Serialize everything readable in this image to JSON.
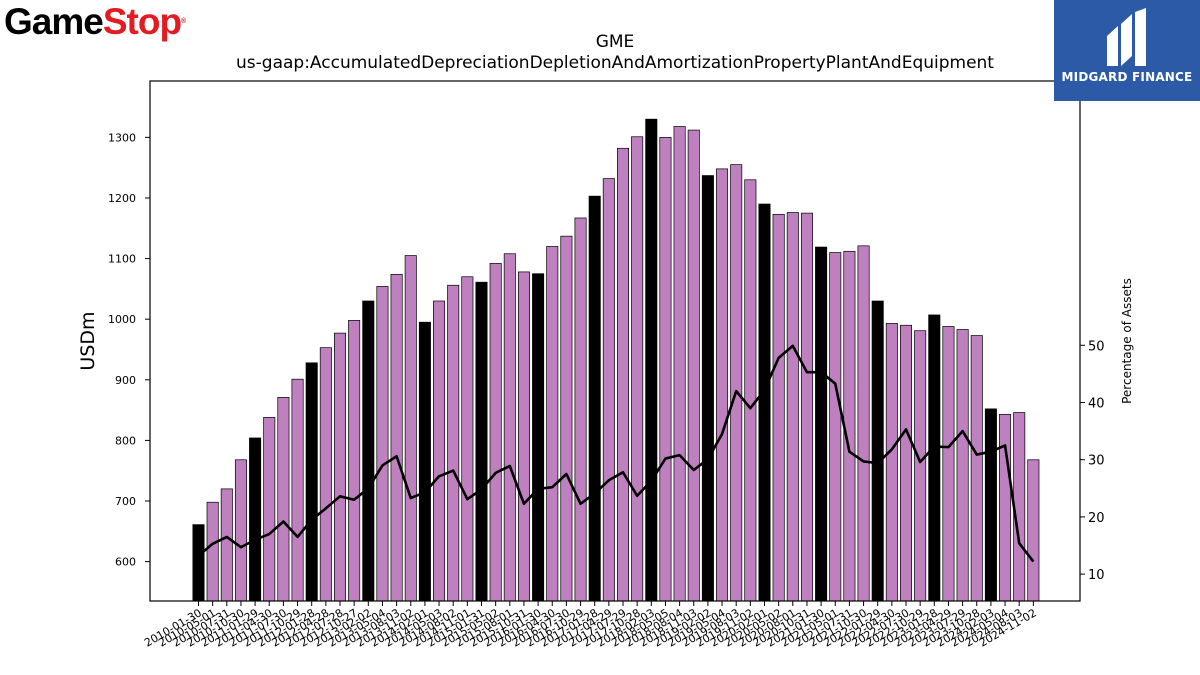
{
  "brand": {
    "logo_game": "Game",
    "logo_stop": "Stop",
    "logo_reg": "®",
    "watermark_text": "MIDGARD FINANCE",
    "watermark_icon": "midgard-m-icon",
    "watermark_color": "#2c5aa6"
  },
  "chart_data": {
    "type": "bar",
    "title": "GME",
    "subtitle": "us-gaap:AccumulatedDepreciationDepletionAndAmortizationPropertyPlantAndEquipment",
    "ylabel": "USDm",
    "y2label": "Percentage of Assets",
    "ylim": [
      535,
      1393
    ],
    "y2lim": [
      5.3,
      96.2
    ],
    "yticks": [
      600,
      700,
      800,
      900,
      1000,
      1100,
      1200,
      1300
    ],
    "y2ticks": [
      10,
      20,
      30,
      40,
      50
    ],
    "grid": false,
    "colors": {
      "quarter_bar": "#bf80bf",
      "fiscal_year_bar": "#000000",
      "line": "#000000"
    },
    "categories": [
      "2010-01-30",
      "2010-05-01",
      "2010-07-31",
      "2010-10-30",
      "2011-01-29",
      "2011-04-30",
      "2011-07-30",
      "2011-10-29",
      "2012-01-28",
      "2012-04-28",
      "2012-07-28",
      "2012-10-27",
      "2013-02-02",
      "2013-05-04",
      "2013-08-03",
      "2013-11-02",
      "2014-02-01",
      "2014-05-03",
      "2014-08-02",
      "2014-11-01",
      "2015-01-31",
      "2015-05-02",
      "2015-08-01",
      "2015-10-31",
      "2016-01-30",
      "2016-04-30",
      "2016-07-30",
      "2016-10-29",
      "2017-01-28",
      "2017-04-29",
      "2017-07-29",
      "2017-10-28",
      "2018-02-03",
      "2018-05-05",
      "2018-08-04",
      "2018-11-03",
      "2019-02-02",
      "2019-05-04",
      "2019-08-03",
      "2019-11-02",
      "2020-02-01",
      "2020-05-02",
      "2020-08-01",
      "2020-10-31",
      "2021-01-30",
      "2021-05-01",
      "2021-07-31",
      "2021-10-30",
      "2022-01-29",
      "2022-04-30",
      "2022-07-30",
      "2022-10-29",
      "2023-01-28",
      "2023-04-29",
      "2023-07-29",
      "2023-10-28",
      "2024-02-03",
      "2024-05-04",
      "2024-08-03",
      "2024-11-02"
    ],
    "values": [
      661,
      698,
      720,
      768,
      804,
      838,
      871,
      901,
      928,
      953,
      977,
      998,
      1030,
      1054,
      1074,
      1105,
      995,
      1030,
      1056,
      1070,
      1061,
      1092,
      1108,
      1078,
      1075,
      1120,
      1137,
      1167,
      1203,
      1232,
      1282,
      1301,
      1330,
      1300,
      1318,
      1312,
      1237,
      1248,
      1255,
      1230,
      1190,
      1173,
      1176,
      1175,
      1119,
      1110,
      1112,
      1121,
      1030,
      993,
      990,
      981,
      1007,
      988,
      983,
      973,
      852,
      843,
      846,
      768
    ],
    "fiscal_year_end": [
      true,
      false,
      false,
      false,
      true,
      false,
      false,
      false,
      true,
      false,
      false,
      false,
      true,
      false,
      false,
      false,
      true,
      false,
      false,
      false,
      true,
      false,
      false,
      false,
      true,
      false,
      false,
      false,
      true,
      false,
      false,
      false,
      true,
      false,
      false,
      false,
      true,
      false,
      false,
      false,
      true,
      false,
      false,
      false,
      true,
      false,
      false,
      false,
      true,
      false,
      false,
      false,
      true,
      false,
      false,
      false,
      true,
      false,
      false,
      false
    ],
    "series2": {
      "values": [
        13.2,
        15.3,
        16.5,
        14.7,
        16.0,
        17.0,
        19.2,
        16.5,
        19.5,
        21.5,
        23.6,
        23.0,
        25.0,
        29.0,
        30.6,
        23.3,
        24.3,
        27.1,
        28.1,
        23.1,
        24.8,
        27.7,
        28.9,
        22.3,
        24.9,
        25.2,
        27.5,
        22.3,
        24.1,
        26.4,
        27.8,
        23.7,
        26.3,
        30.2,
        30.8,
        28.2,
        30.1,
        34.5,
        42.0,
        39.0,
        42.2,
        47.8,
        49.9,
        45.3,
        45.3,
        43.3,
        31.4,
        29.7,
        29.4,
        31.8,
        35.3,
        29.6,
        32.3,
        32.2,
        35.0,
        30.9,
        31.4,
        32.5,
        15.4,
        12.2
      ]
    }
  }
}
